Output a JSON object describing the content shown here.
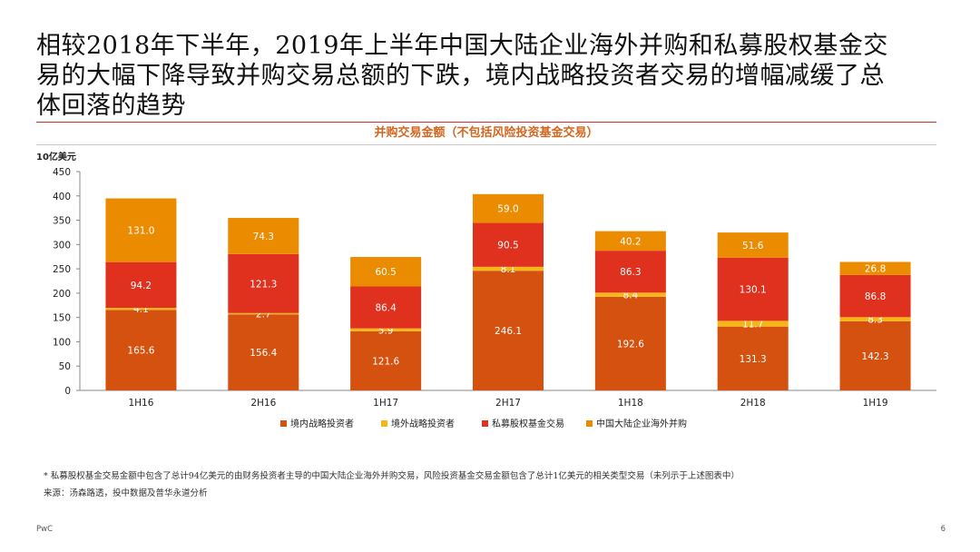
{
  "slide": {
    "title_line1": "相较2018年下半年，2019年上半年中国大陆企业海外并购和私募股权基金交",
    "title_line2": "易的大幅下降导致并购交易总额的下跌，境内战略投资者交易的增幅减缓了总",
    "title_line3": "体回落的趋势",
    "footnote": "* 私募股权基金交易金额中包含了总计94亿美元的由财务投资者主导的中国大陆企业海外并购交易，风险投资基金交易金额包含了总计1亿美元的相关类型交易（未列示于上述图表中）",
    "source": "来源：汤森路透，投中数据及普华永道分析",
    "brand": "PwC",
    "page_number": "6"
  },
  "chart_data": {
    "type": "bar",
    "stacked": true,
    "title": "并购交易金额（不包括风险投资基金交易）",
    "ylabel": "10亿美元",
    "ylim": [
      0,
      450
    ],
    "yticks": [
      0,
      50,
      100,
      150,
      200,
      250,
      300,
      350,
      400,
      450
    ],
    "categories": [
      "1H16",
      "2H16",
      "1H17",
      "2H17",
      "1H18",
      "2H18",
      "1H19"
    ],
    "series": [
      {
        "name": "境内战略投资者",
        "color": "#d4510f",
        "values": [
          165.6,
          156.4,
          121.6,
          246.1,
          192.6,
          131.3,
          142.3
        ]
      },
      {
        "name": "境外战略投资者",
        "color": "#f6b618",
        "values": [
          4.1,
          2.7,
          5.9,
          8.1,
          8.4,
          11.7,
          8.3
        ]
      },
      {
        "name": "私募股权基金交易",
        "color": "#e0301e",
        "values": [
          94.2,
          121.3,
          86.4,
          90.5,
          86.3,
          130.1,
          86.8
        ]
      },
      {
        "name": "中国大陆企业海外并购",
        "color": "#eb8c00",
        "values": [
          131.0,
          74.3,
          60.5,
          59.0,
          40.2,
          51.6,
          26.8
        ]
      }
    ],
    "legend_position": "bottom",
    "grid": false
  }
}
